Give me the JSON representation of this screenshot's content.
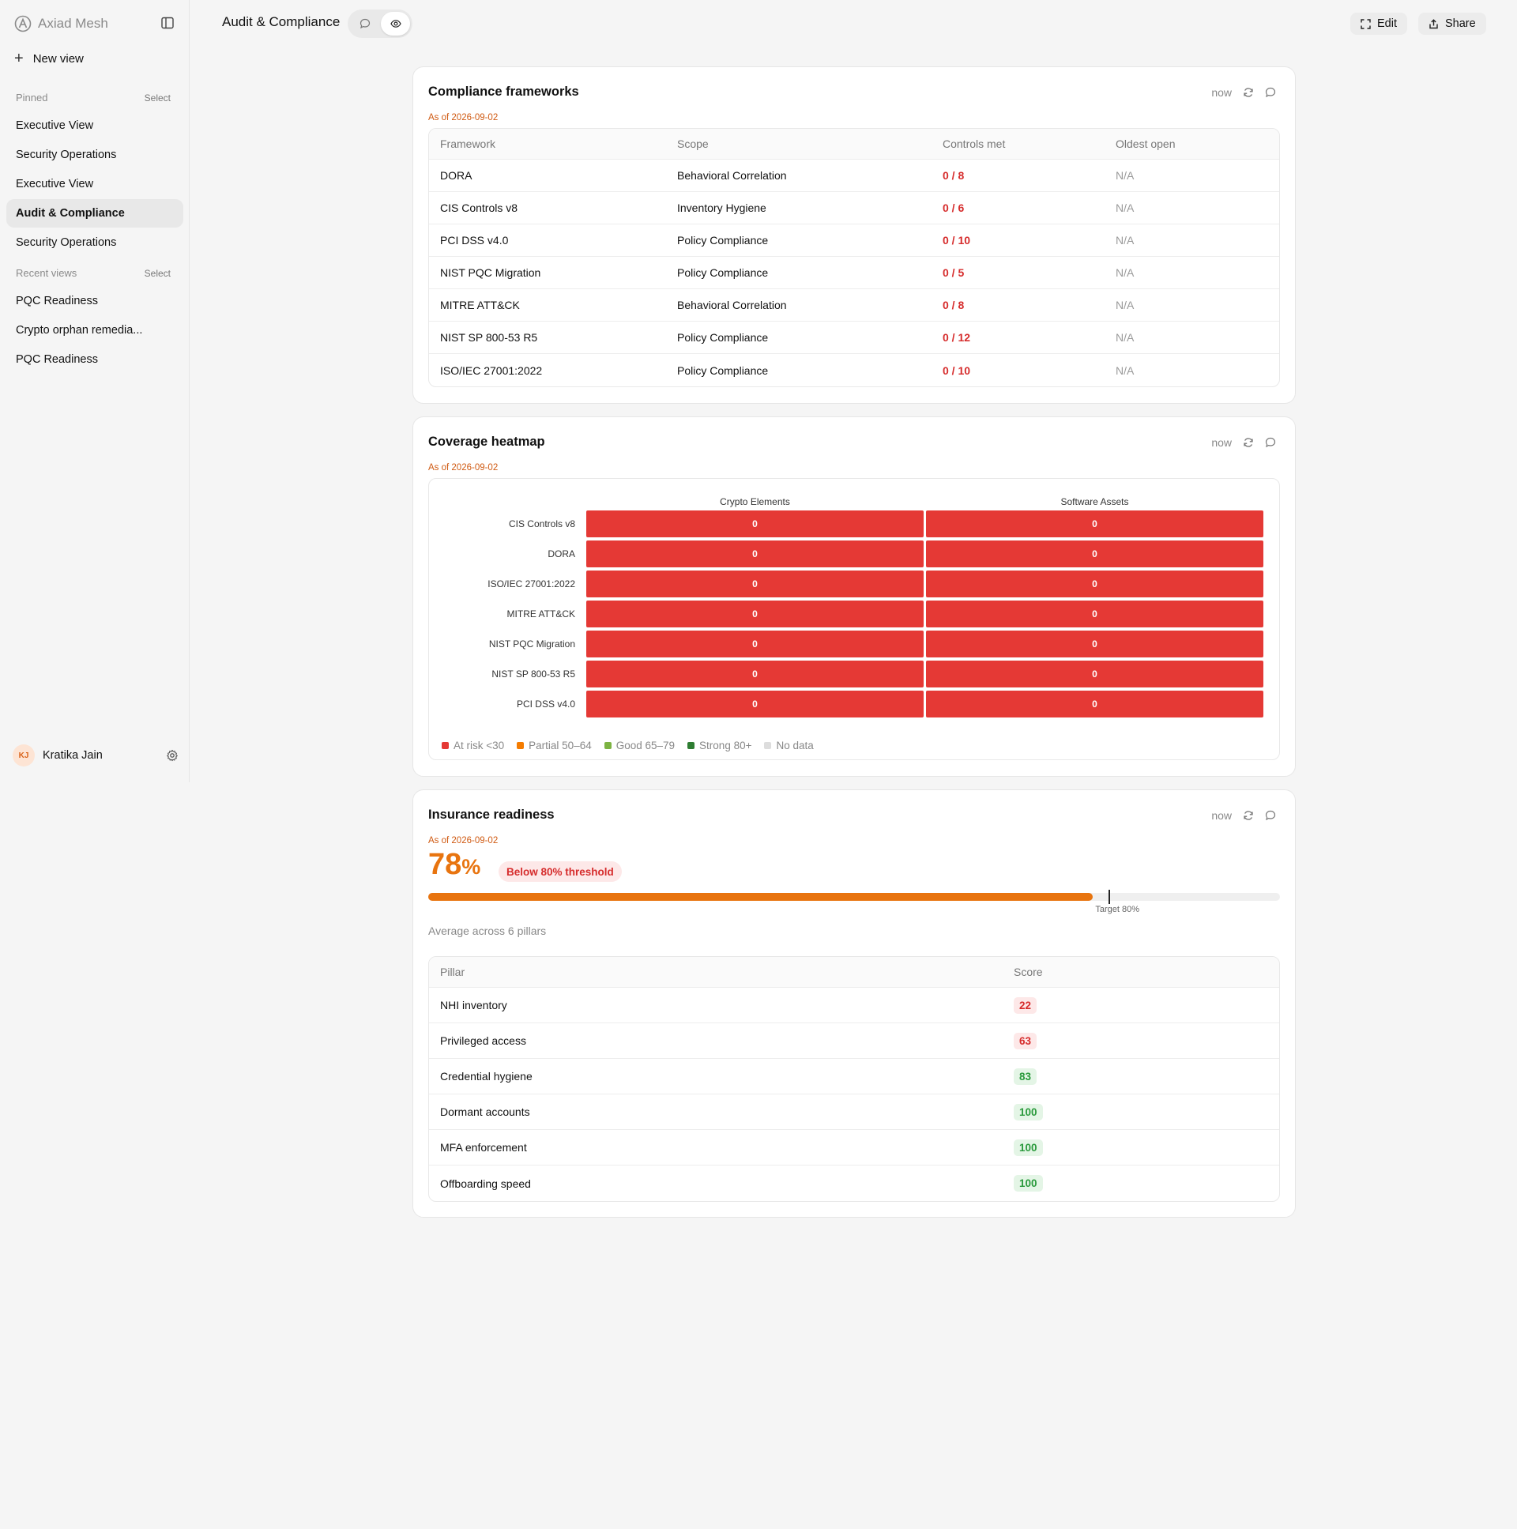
{
  "app": {
    "name": "Axiad Mesh",
    "new_view_label": "New view"
  },
  "sidebar": {
    "pinned_label": "Pinned",
    "pinned_select": "Select",
    "pinned": [
      {
        "label": "Executive View"
      },
      {
        "label": "Security Operations"
      },
      {
        "label": "Executive View"
      },
      {
        "label": "Audit & Compliance",
        "active": true
      },
      {
        "label": "Security Operations"
      }
    ],
    "recent_label": "Recent views",
    "recent_select": "Select",
    "recent": [
      {
        "label": "PQC Readiness"
      },
      {
        "label": "Crypto orphan remedia..."
      },
      {
        "label": "PQC Readiness"
      }
    ],
    "user": {
      "initials": "KJ",
      "name": "Kratika Jain"
    }
  },
  "header": {
    "title": "Audit & Compliance",
    "edit_label": "Edit",
    "share_label": "Share"
  },
  "frameworks_card": {
    "title": "Compliance frameworks",
    "as_of": "As of 2026-09-02",
    "refresh_time": "now",
    "columns": [
      "Framework",
      "Scope",
      "Controls met",
      "Oldest open"
    ],
    "rows": [
      {
        "framework": "DORA",
        "scope": "Behavioral Correlation",
        "controls": "0 / 8",
        "oldest": "N/A"
      },
      {
        "framework": "CIS Controls v8",
        "scope": "Inventory Hygiene",
        "controls": "0 / 6",
        "oldest": "N/A"
      },
      {
        "framework": "PCI DSS v4.0",
        "scope": "Policy Compliance",
        "controls": "0 / 10",
        "oldest": "N/A"
      },
      {
        "framework": "NIST PQC Migration",
        "scope": "Policy Compliance",
        "controls": "0 / 5",
        "oldest": "N/A"
      },
      {
        "framework": "MITRE ATT&CK",
        "scope": "Behavioral Correlation",
        "controls": "0 / 8",
        "oldest": "N/A"
      },
      {
        "framework": "NIST SP 800-53 R5",
        "scope": "Policy Compliance",
        "controls": "0 / 12",
        "oldest": "N/A"
      },
      {
        "framework": "ISO/IEC 27001:2022",
        "scope": "Policy Compliance",
        "controls": "0 / 10",
        "oldest": "N/A"
      }
    ]
  },
  "heatmap_card": {
    "title": "Coverage heatmap",
    "as_of": "As of 2026-09-02",
    "refresh_time": "now",
    "legend": [
      {
        "label": "At risk <30",
        "color": "#e53935"
      },
      {
        "label": "Partial 50–64",
        "color": "#f57c00"
      },
      {
        "label": "Good 65–79",
        "color": "#7cb342"
      },
      {
        "label": "Strong 80+",
        "color": "#2e7d32"
      },
      {
        "label": "No data",
        "color": "#dddddd"
      }
    ]
  },
  "chart_data": {
    "type": "heatmap",
    "columns": [
      "Crypto Elements",
      "Software Assets"
    ],
    "rows": [
      "CIS Controls v8",
      "DORA",
      "ISO/IEC 27001:2022",
      "MITRE ATT&CK",
      "NIST PQC Migration",
      "NIST SP 800-53 R5",
      "PCI DSS v4.0"
    ],
    "values": [
      [
        0,
        0
      ],
      [
        0,
        0
      ],
      [
        0,
        0
      ],
      [
        0,
        0
      ],
      [
        0,
        0
      ],
      [
        0,
        0
      ],
      [
        0,
        0
      ]
    ],
    "cell_color": "#e53935"
  },
  "insurance_card": {
    "title": "Insurance readiness",
    "as_of": "As of 2026-09-02",
    "refresh_time": "now",
    "score_value": "78",
    "score_unit": "%",
    "score_fraction": 0.78,
    "threshold_badge": "Below 80% threshold",
    "target_fraction": 0.8,
    "target_label": "Target 80%",
    "average_text": "Average across 6 pillars",
    "columns": [
      "Pillar",
      "Score"
    ],
    "pillars": [
      {
        "name": "NHI inventory",
        "score": "22",
        "status": "bad"
      },
      {
        "name": "Privileged access",
        "score": "63",
        "status": "bad"
      },
      {
        "name": "Credential hygiene",
        "score": "83",
        "status": "good"
      },
      {
        "name": "Dormant accounts",
        "score": "100",
        "status": "good"
      },
      {
        "name": "MFA enforcement",
        "score": "100",
        "status": "good"
      },
      {
        "name": "Offboarding speed",
        "score": "100",
        "status": "good"
      }
    ]
  }
}
